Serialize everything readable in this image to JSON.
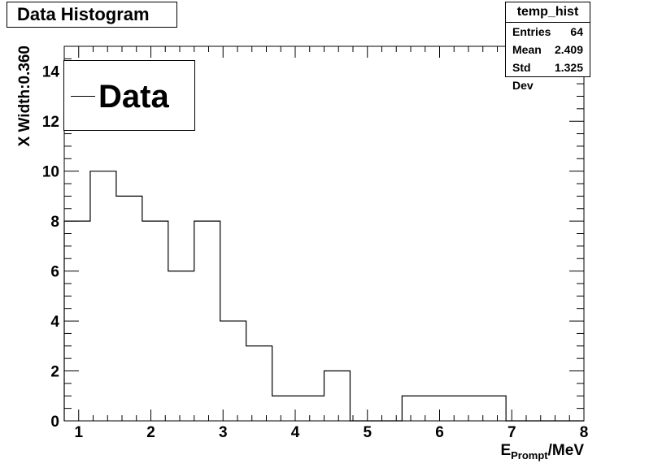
{
  "title": "Data Histogram",
  "stats": {
    "name": "temp_hist",
    "rows": [
      {
        "label": "Entries",
        "value": "64"
      },
      {
        "label": "Mean",
        "value": "2.409"
      },
      {
        "label": "Std Dev",
        "value": "1.325"
      }
    ]
  },
  "legend": {
    "label": "Data"
  },
  "chart_data": {
    "type": "bar",
    "title": "Data Histogram",
    "xlabel": "E_Prompt/MeV",
    "xlabel_main": "E",
    "xlabel_sub": "Prompt",
    "xlabel_unit": "/MeV",
    "ylabel": "X Width:0.360",
    "xlim": [
      0.8,
      8
    ],
    "ylim": [
      0,
      15
    ],
    "x_ticks": [
      "1",
      "2",
      "3",
      "4",
      "5",
      "6",
      "7",
      "8"
    ],
    "y_ticks": [
      "0",
      "2",
      "4",
      "6",
      "8",
      "10",
      "12",
      "14"
    ],
    "bin_width": 0.36,
    "bin_edges": [
      0.8,
      1.16,
      1.52,
      1.88,
      2.24,
      2.6,
      2.96,
      3.32,
      3.68,
      4.04,
      4.4,
      4.76,
      5.12,
      5.48,
      5.84,
      6.2,
      6.56,
      6.92,
      7.28,
      7.64,
      8.0
    ],
    "values": [
      8,
      10,
      9,
      8,
      6,
      8,
      4,
      3,
      1,
      1,
      2,
      0,
      0,
      1,
      1,
      1,
      1,
      0,
      0,
      0
    ],
    "series": [
      {
        "name": "Data",
        "values": [
          8,
          10,
          9,
          8,
          6,
          8,
          4,
          3,
          1,
          1,
          2,
          0,
          0,
          1,
          1,
          1,
          1,
          0,
          0,
          0
        ]
      }
    ]
  }
}
